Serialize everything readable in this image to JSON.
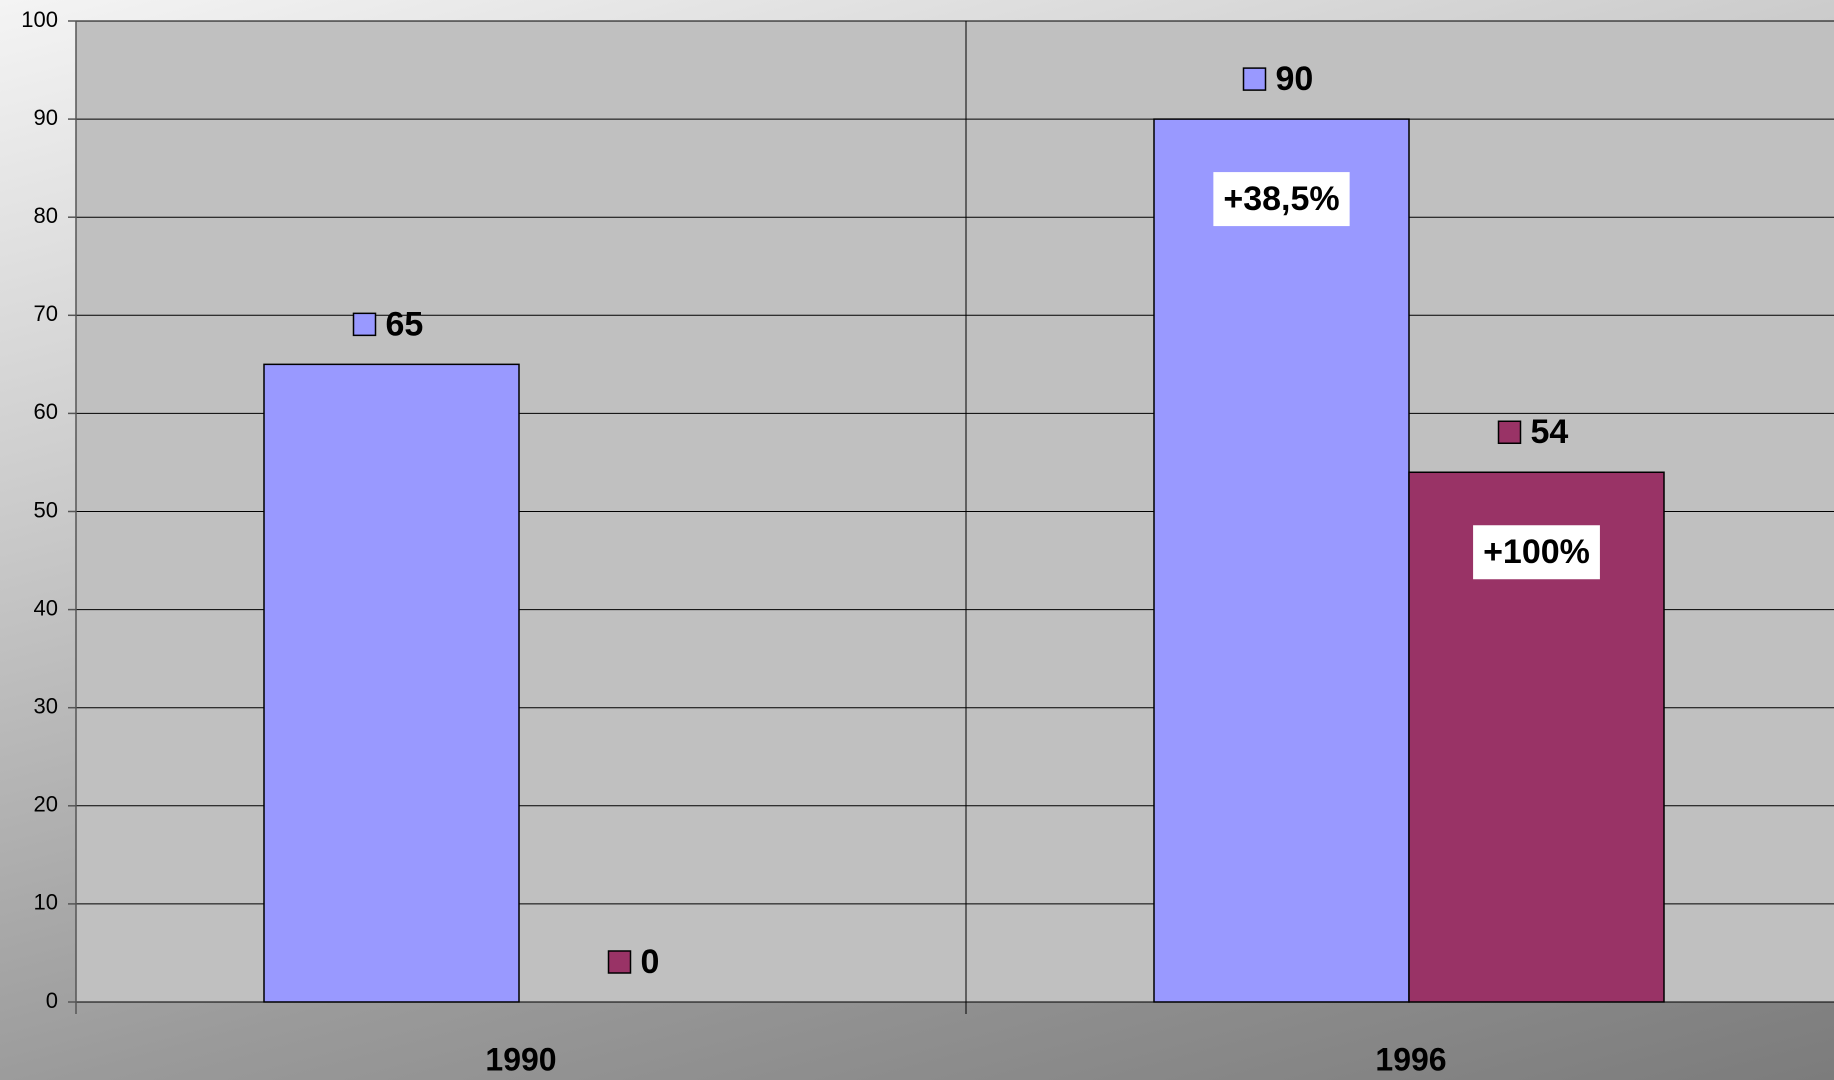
{
  "chart_data": {
    "type": "bar",
    "categories": [
      "1990",
      "1996"
    ],
    "series": [
      {
        "color": "#9999ff",
        "values": [
          65,
          90
        ]
      },
      {
        "color": "#993366",
        "values": [
          0,
          54
        ]
      }
    ],
    "annotations": [
      "+38,5%",
      "+100%"
    ],
    "ylim": [
      0,
      100
    ],
    "yticks": [
      0,
      10,
      20,
      30,
      40,
      50,
      60,
      70,
      80,
      90,
      100
    ],
    "grid": true
  }
}
